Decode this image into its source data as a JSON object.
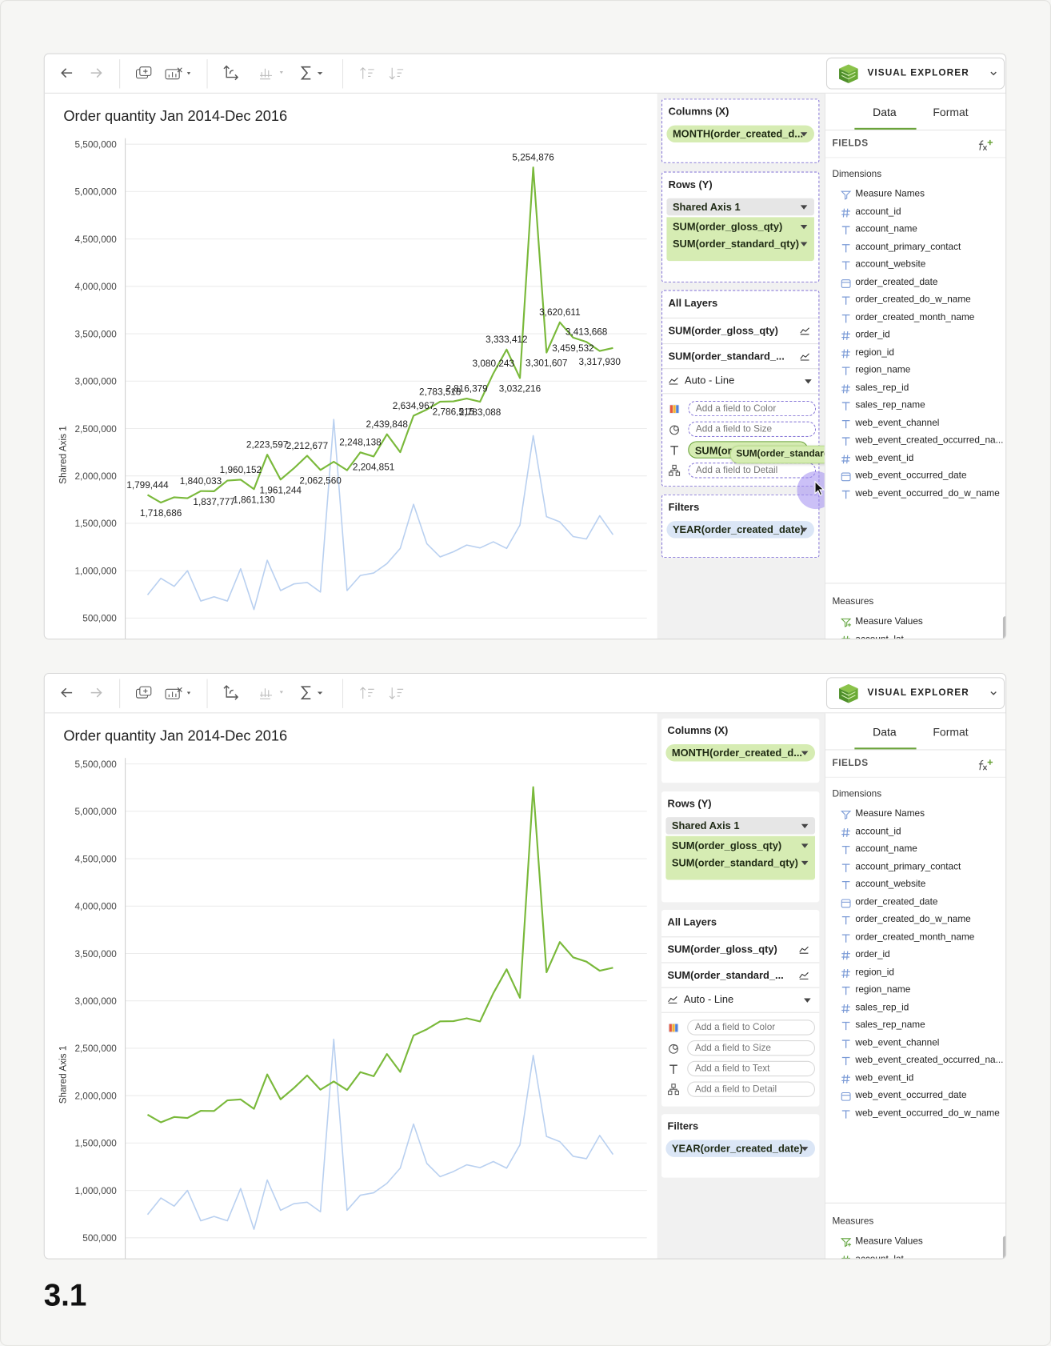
{
  "chart_data": [
    {
      "type": "line",
      "title": "Order quantity Jan 2014-Dec 2016",
      "y_label": "Shared Axis 1",
      "ylim": [
        265000,
        5563000
      ],
      "yticks": [
        {
          "value": 500000,
          "label": "500,000"
        },
        {
          "value": 1000000,
          "label": "1,000,000"
        },
        {
          "value": 1500000,
          "label": "1,500,000"
        },
        {
          "value": 2000000,
          "label": "2,000,000"
        },
        {
          "value": 2500000,
          "label": "2,500,000"
        },
        {
          "value": 3000000,
          "label": "3,000,000"
        },
        {
          "value": 3500000,
          "label": "3,500,000"
        },
        {
          "value": 4000000,
          "label": "4,000,000"
        },
        {
          "value": 4500000,
          "label": "4,500,000"
        },
        {
          "value": 5000000,
          "label": "5,000,000"
        },
        {
          "value": 5500000,
          "label": "5,500,000"
        }
      ],
      "grid": true,
      "series": [
        {
          "color": "#b9d0f0",
          "values": [
            745000,
            920000,
            835000,
            1000000,
            680000,
            725000,
            680000,
            1020000,
            590000,
            1110000,
            790000,
            860000,
            875000,
            775000,
            2595000,
            790000,
            950000,
            975000,
            1075000,
            1235000,
            1700000,
            1285000,
            1145000,
            1200000,
            1270000,
            1240000,
            1305000,
            1235000,
            1480000,
            2425000,
            1570000,
            1515000,
            1360000,
            1335000,
            1580000,
            1380000
          ]
        },
        {
          "color": "#7ab93b",
          "values": [
            1799444,
            1718686,
            1775000,
            1765000,
            1840033,
            1837777,
            1950000,
            1960152,
            1861130,
            2223597,
            1961244,
            2080000,
            2212677,
            2062560,
            2150000,
            2060000,
            2248138,
            2204851,
            2439848,
            2250000,
            2634967,
            2700000,
            2783518,
            2786515,
            2816379,
            2783088,
            3080243,
            3333412,
            3032216,
            5254876,
            3301607,
            3620611,
            3459532,
            3413668,
            3317930,
            3350000
          ],
          "value_labels": [
            "1,799,444",
            "1,718,686",
            null,
            null,
            "1,840,033",
            "1,837,777",
            null,
            "1,960,152",
            "1,861,130",
            "2,223,597",
            "1,961,244",
            null,
            "2,212,677",
            "2,062,560",
            null,
            null,
            "2,248,138",
            "2,204,851",
            "2,439,848",
            null,
            "2,634,967",
            null,
            "2,783,518",
            "2,786,515",
            "2,816,379",
            "2,783,088",
            "3,080,243",
            "3,333,412",
            "3,032,216",
            "5,254,876",
            "3,301,607",
            "3,620,611",
            "3,459,532",
            "3,413,668",
            "3,317,930",
            null
          ]
        }
      ]
    },
    {
      "type": "line",
      "title": "Order quantity Jan 2014-Dec 2016",
      "y_label": "Shared Axis 1",
      "ylim": [
        265000,
        5563000
      ],
      "yticks": [
        {
          "value": 500000,
          "label": "500,000"
        },
        {
          "value": 1000000,
          "label": "1,000,000"
        },
        {
          "value": 1500000,
          "label": "1,500,000"
        },
        {
          "value": 2000000,
          "label": "2,000,000"
        },
        {
          "value": 2500000,
          "label": "2,500,000"
        },
        {
          "value": 3000000,
          "label": "3,000,000"
        },
        {
          "value": 3500000,
          "label": "3,500,000"
        },
        {
          "value": 4000000,
          "label": "4,000,000"
        },
        {
          "value": 4500000,
          "label": "4,500,000"
        },
        {
          "value": 5000000,
          "label": "5,000,000"
        },
        {
          "value": 5500000,
          "label": "5,500,000"
        }
      ],
      "grid": true,
      "series": [
        {
          "color": "#b9d0f0",
          "values": [
            745000,
            920000,
            835000,
            1000000,
            680000,
            725000,
            680000,
            1020000,
            590000,
            1110000,
            790000,
            860000,
            875000,
            775000,
            2595000,
            790000,
            950000,
            975000,
            1075000,
            1235000,
            1700000,
            1285000,
            1145000,
            1200000,
            1270000,
            1240000,
            1305000,
            1235000,
            1480000,
            2425000,
            1570000,
            1515000,
            1360000,
            1335000,
            1580000,
            1380000
          ]
        },
        {
          "color": "#7ab93b",
          "values": [
            1799444,
            1718686,
            1775000,
            1765000,
            1840033,
            1837777,
            1950000,
            1960152,
            1861130,
            2223597,
            1961244,
            2080000,
            2212677,
            2062560,
            2150000,
            2060000,
            2248138,
            2204851,
            2439848,
            2250000,
            2634967,
            2700000,
            2783518,
            2786515,
            2816379,
            2783088,
            3080243,
            3333412,
            3032216,
            5254876,
            3301607,
            3620611,
            3459532,
            3413668,
            3317930,
            3350000
          ]
        }
      ]
    }
  ],
  "panels": [
    {
      "explorer": "VISUAL EXPLORER",
      "columns": {
        "title": "Columns (X)",
        "pill": "MONTH(order_created_d..."
      },
      "rows": {
        "title": "Rows (Y)",
        "axis": "Shared Axis 1",
        "pills": [
          "SUM(order_gloss_qty)",
          "SUM(order_standard_qty)"
        ]
      },
      "layers": {
        "title": "All Layers",
        "items": [
          "SUM(order_gloss_qty)",
          "SUM(order_standard_..."
        ],
        "mark": "Auto - Line",
        "encodings": [
          {
            "placeholder": "Add a field to Color"
          },
          {
            "placeholder": "Add a field to Size"
          },
          {
            "pill": "SUM(order_standard_qty)"
          },
          {
            "placeholder": "Add a field to Detail"
          }
        ],
        "drag_ghost": "SUM(order_standard_q..."
      },
      "filters": {
        "title": "Filters",
        "pill": "YEAR(order_created_date)"
      },
      "tabs": [
        "Data",
        "Format"
      ],
      "fields_title": "FIELDS",
      "dimensions": {
        "title": "Dimensions",
        "items": [
          {
            "name": "Measure Names",
            "kind": "names"
          },
          {
            "name": "account_id",
            "kind": "number"
          },
          {
            "name": "account_name",
            "kind": "text"
          },
          {
            "name": "account_primary_contact",
            "kind": "text"
          },
          {
            "name": "account_website",
            "kind": "text"
          },
          {
            "name": "order_created_date",
            "kind": "date"
          },
          {
            "name": "order_created_do_w_name",
            "kind": "text"
          },
          {
            "name": "order_created_month_name",
            "kind": "text"
          },
          {
            "name": "order_id",
            "kind": "number"
          },
          {
            "name": "region_id",
            "kind": "number"
          },
          {
            "name": "region_name",
            "kind": "text"
          },
          {
            "name": "sales_rep_id",
            "kind": "number"
          },
          {
            "name": "sales_rep_name",
            "kind": "text"
          },
          {
            "name": "web_event_channel",
            "kind": "text"
          },
          {
            "name": "web_event_created_occurred_na...",
            "kind": "text"
          },
          {
            "name": "web_event_id",
            "kind": "number"
          },
          {
            "name": "web_event_occurred_date",
            "kind": "date"
          },
          {
            "name": "web_event_occurred_do_w_name",
            "kind": "text"
          }
        ]
      },
      "measures": {
        "title": "Measures",
        "items": [
          {
            "name": "Measure Values",
            "kind": "values"
          },
          {
            "name": "account_lat",
            "kind": "number"
          }
        ]
      }
    },
    {
      "explorer": "VISUAL EXPLORER",
      "columns": {
        "title": "Columns (X)",
        "pill": "MONTH(order_created_d..."
      },
      "rows": {
        "title": "Rows (Y)",
        "axis": "Shared Axis 1",
        "pills": [
          "SUM(order_gloss_qty)",
          "SUM(order_standard_qty)"
        ]
      },
      "layers": {
        "title": "All Layers",
        "items": [
          "SUM(order_gloss_qty)",
          "SUM(order_standard_..."
        ],
        "mark": "Auto - Line",
        "encodings": [
          {
            "placeholder": "Add a field to Color"
          },
          {
            "placeholder": "Add a field to Size"
          },
          {
            "placeholder": "Add a field to Text"
          },
          {
            "placeholder": "Add a field to Detail"
          }
        ]
      },
      "filters": {
        "title": "Filters",
        "pill": "YEAR(order_created_date)"
      },
      "tabs": [
        "Data",
        "Format"
      ],
      "fields_title": "FIELDS",
      "dimensions": {
        "title": "Dimensions",
        "items": [
          {
            "name": "Measure Names",
            "kind": "names"
          },
          {
            "name": "account_id",
            "kind": "number"
          },
          {
            "name": "account_name",
            "kind": "text"
          },
          {
            "name": "account_primary_contact",
            "kind": "text"
          },
          {
            "name": "account_website",
            "kind": "text"
          },
          {
            "name": "order_created_date",
            "kind": "date"
          },
          {
            "name": "order_created_do_w_name",
            "kind": "text"
          },
          {
            "name": "order_created_month_name",
            "kind": "text"
          },
          {
            "name": "order_id",
            "kind": "number"
          },
          {
            "name": "region_id",
            "kind": "number"
          },
          {
            "name": "region_name",
            "kind": "text"
          },
          {
            "name": "sales_rep_id",
            "kind": "number"
          },
          {
            "name": "sales_rep_name",
            "kind": "text"
          },
          {
            "name": "web_event_channel",
            "kind": "text"
          },
          {
            "name": "web_event_created_occurred_na...",
            "kind": "text"
          },
          {
            "name": "web_event_id",
            "kind": "number"
          },
          {
            "name": "web_event_occurred_date",
            "kind": "date"
          },
          {
            "name": "web_event_occurred_do_w_name",
            "kind": "text"
          }
        ]
      },
      "measures": {
        "title": "Measures",
        "items": [
          {
            "name": "Measure Values",
            "kind": "values"
          },
          {
            "name": "account_lat",
            "kind": "number"
          }
        ]
      }
    }
  ],
  "figure_label": "3.1"
}
